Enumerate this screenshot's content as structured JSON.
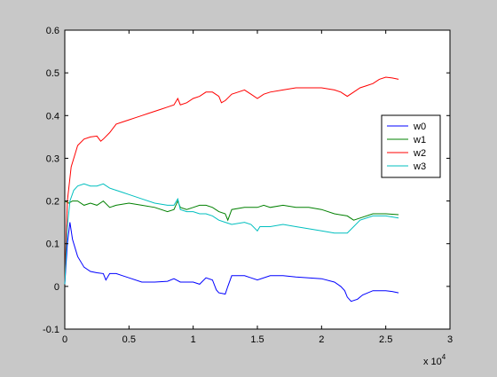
{
  "chart_data": {
    "type": "line",
    "title": "",
    "xlabel": "",
    "ylabel": "",
    "x_multiplier_label": {
      "base": "x 10",
      "exponent": "4"
    },
    "xlim": [
      0,
      3
    ],
    "ylim": [
      -0.1,
      0.6
    ],
    "xticks": [
      "0",
      "0.5",
      "1",
      "1.5",
      "2",
      "2.5",
      "3"
    ],
    "yticks": [
      "-0.1",
      "0",
      "0.1",
      "0.2",
      "0.3",
      "0.4",
      "0.5",
      "0.6"
    ],
    "xtick_values": [
      0,
      0.5,
      1,
      1.5,
      2,
      2.5,
      3
    ],
    "ytick_values": [
      -0.1,
      0,
      0.1,
      0.2,
      0.3,
      0.4,
      0.5,
      0.6
    ],
    "grid": false,
    "legend_position": "right",
    "series": [
      {
        "name": "w0",
        "color": "#0000ff",
        "points": [
          [
            0,
            0.005
          ],
          [
            0.02,
            0.1
          ],
          [
            0.04,
            0.15
          ],
          [
            0.06,
            0.11
          ],
          [
            0.1,
            0.07
          ],
          [
            0.15,
            0.045
          ],
          [
            0.2,
            0.035
          ],
          [
            0.25,
            0.032
          ],
          [
            0.3,
            0.03
          ],
          [
            0.32,
            0.015
          ],
          [
            0.35,
            0.03
          ],
          [
            0.4,
            0.03
          ],
          [
            0.45,
            0.025
          ],
          [
            0.5,
            0.02
          ],
          [
            0.6,
            0.01
          ],
          [
            0.7,
            0.01
          ],
          [
            0.8,
            0.012
          ],
          [
            0.85,
            0.018
          ],
          [
            0.9,
            0.01
          ],
          [
            1.0,
            0.01
          ],
          [
            1.05,
            0.005
          ],
          [
            1.1,
            0.02
          ],
          [
            1.15,
            0.015
          ],
          [
            1.18,
            -0.008
          ],
          [
            1.2,
            -0.015
          ],
          [
            1.25,
            -0.018
          ],
          [
            1.27,
            0.0
          ],
          [
            1.3,
            0.025
          ],
          [
            1.4,
            0.025
          ],
          [
            1.45,
            0.02
          ],
          [
            1.5,
            0.015
          ],
          [
            1.6,
            0.025
          ],
          [
            1.7,
            0.025
          ],
          [
            1.8,
            0.022
          ],
          [
            1.9,
            0.02
          ],
          [
            2.0,
            0.018
          ],
          [
            2.1,
            0.01
          ],
          [
            2.15,
            0.0
          ],
          [
            2.18,
            -0.01
          ],
          [
            2.2,
            -0.025
          ],
          [
            2.23,
            -0.035
          ],
          [
            2.28,
            -0.03
          ],
          [
            2.32,
            -0.02
          ],
          [
            2.4,
            -0.01
          ],
          [
            2.5,
            -0.01
          ],
          [
            2.55,
            -0.012
          ],
          [
            2.6,
            -0.015
          ]
        ]
      },
      {
        "name": "w1",
        "color": "#008000",
        "points": [
          [
            0,
            0.2
          ],
          [
            0.03,
            0.195
          ],
          [
            0.06,
            0.2
          ],
          [
            0.1,
            0.2
          ],
          [
            0.15,
            0.19
          ],
          [
            0.2,
            0.195
          ],
          [
            0.25,
            0.19
          ],
          [
            0.3,
            0.2
          ],
          [
            0.35,
            0.185
          ],
          [
            0.4,
            0.19
          ],
          [
            0.5,
            0.195
          ],
          [
            0.6,
            0.19
          ],
          [
            0.7,
            0.185
          ],
          [
            0.75,
            0.18
          ],
          [
            0.8,
            0.175
          ],
          [
            0.85,
            0.18
          ],
          [
            0.88,
            0.2
          ],
          [
            0.9,
            0.185
          ],
          [
            0.95,
            0.18
          ],
          [
            1.0,
            0.185
          ],
          [
            1.05,
            0.19
          ],
          [
            1.1,
            0.19
          ],
          [
            1.15,
            0.185
          ],
          [
            1.2,
            0.175
          ],
          [
            1.25,
            0.17
          ],
          [
            1.27,
            0.155
          ],
          [
            1.3,
            0.18
          ],
          [
            1.4,
            0.185
          ],
          [
            1.5,
            0.185
          ],
          [
            1.55,
            0.19
          ],
          [
            1.6,
            0.185
          ],
          [
            1.7,
            0.19
          ],
          [
            1.8,
            0.185
          ],
          [
            1.9,
            0.185
          ],
          [
            2.0,
            0.18
          ],
          [
            2.1,
            0.17
          ],
          [
            2.2,
            0.165
          ],
          [
            2.25,
            0.155
          ],
          [
            2.3,
            0.16
          ],
          [
            2.4,
            0.17
          ],
          [
            2.5,
            0.17
          ],
          [
            2.6,
            0.168
          ]
        ]
      },
      {
        "name": "w2",
        "color": "#ff0000",
        "points": [
          [
            0,
            0.01
          ],
          [
            0.02,
            0.2
          ],
          [
            0.05,
            0.28
          ],
          [
            0.08,
            0.31
          ],
          [
            0.1,
            0.33
          ],
          [
            0.15,
            0.345
          ],
          [
            0.2,
            0.35
          ],
          [
            0.25,
            0.352
          ],
          [
            0.28,
            0.34
          ],
          [
            0.3,
            0.345
          ],
          [
            0.35,
            0.36
          ],
          [
            0.4,
            0.38
          ],
          [
            0.45,
            0.385
          ],
          [
            0.5,
            0.39
          ],
          [
            0.55,
            0.395
          ],
          [
            0.6,
            0.4
          ],
          [
            0.65,
            0.405
          ],
          [
            0.7,
            0.41
          ],
          [
            0.75,
            0.415
          ],
          [
            0.8,
            0.42
          ],
          [
            0.85,
            0.425
          ],
          [
            0.88,
            0.44
          ],
          [
            0.9,
            0.425
          ],
          [
            0.95,
            0.43
          ],
          [
            1.0,
            0.44
          ],
          [
            1.05,
            0.445
          ],
          [
            1.1,
            0.455
          ],
          [
            1.15,
            0.455
          ],
          [
            1.2,
            0.445
          ],
          [
            1.22,
            0.43
          ],
          [
            1.25,
            0.435
          ],
          [
            1.3,
            0.45
          ],
          [
            1.35,
            0.455
          ],
          [
            1.4,
            0.46
          ],
          [
            1.45,
            0.45
          ],
          [
            1.5,
            0.44
          ],
          [
            1.55,
            0.45
          ],
          [
            1.6,
            0.455
          ],
          [
            1.7,
            0.46
          ],
          [
            1.8,
            0.465
          ],
          [
            1.9,
            0.465
          ],
          [
            2.0,
            0.465
          ],
          [
            2.1,
            0.46
          ],
          [
            2.15,
            0.455
          ],
          [
            2.2,
            0.445
          ],
          [
            2.25,
            0.455
          ],
          [
            2.3,
            0.465
          ],
          [
            2.35,
            0.47
          ],
          [
            2.4,
            0.475
          ],
          [
            2.45,
            0.485
          ],
          [
            2.5,
            0.49
          ],
          [
            2.55,
            0.488
          ],
          [
            2.6,
            0.485
          ]
        ]
      },
      {
        "name": "w3",
        "color": "#00bfbf",
        "points": [
          [
            0,
            0.005
          ],
          [
            0.02,
            0.14
          ],
          [
            0.04,
            0.2
          ],
          [
            0.07,
            0.225
          ],
          [
            0.1,
            0.235
          ],
          [
            0.15,
            0.24
          ],
          [
            0.2,
            0.235
          ],
          [
            0.25,
            0.235
          ],
          [
            0.3,
            0.24
          ],
          [
            0.35,
            0.23
          ],
          [
            0.4,
            0.225
          ],
          [
            0.45,
            0.22
          ],
          [
            0.5,
            0.215
          ],
          [
            0.6,
            0.205
          ],
          [
            0.7,
            0.195
          ],
          [
            0.8,
            0.19
          ],
          [
            0.85,
            0.19
          ],
          [
            0.88,
            0.205
          ],
          [
            0.9,
            0.18
          ],
          [
            0.95,
            0.175
          ],
          [
            1.0,
            0.175
          ],
          [
            1.05,
            0.17
          ],
          [
            1.1,
            0.17
          ],
          [
            1.15,
            0.165
          ],
          [
            1.2,
            0.155
          ],
          [
            1.25,
            0.15
          ],
          [
            1.3,
            0.145
          ],
          [
            1.4,
            0.15
          ],
          [
            1.45,
            0.145
          ],
          [
            1.5,
            0.13
          ],
          [
            1.52,
            0.14
          ],
          [
            1.6,
            0.14
          ],
          [
            1.7,
            0.145
          ],
          [
            1.8,
            0.14
          ],
          [
            1.9,
            0.135
          ],
          [
            2.0,
            0.13
          ],
          [
            2.1,
            0.125
          ],
          [
            2.15,
            0.125
          ],
          [
            2.2,
            0.125
          ],
          [
            2.25,
            0.14
          ],
          [
            2.3,
            0.155
          ],
          [
            2.4,
            0.165
          ],
          [
            2.5,
            0.165
          ],
          [
            2.6,
            0.16
          ]
        ]
      }
    ]
  }
}
